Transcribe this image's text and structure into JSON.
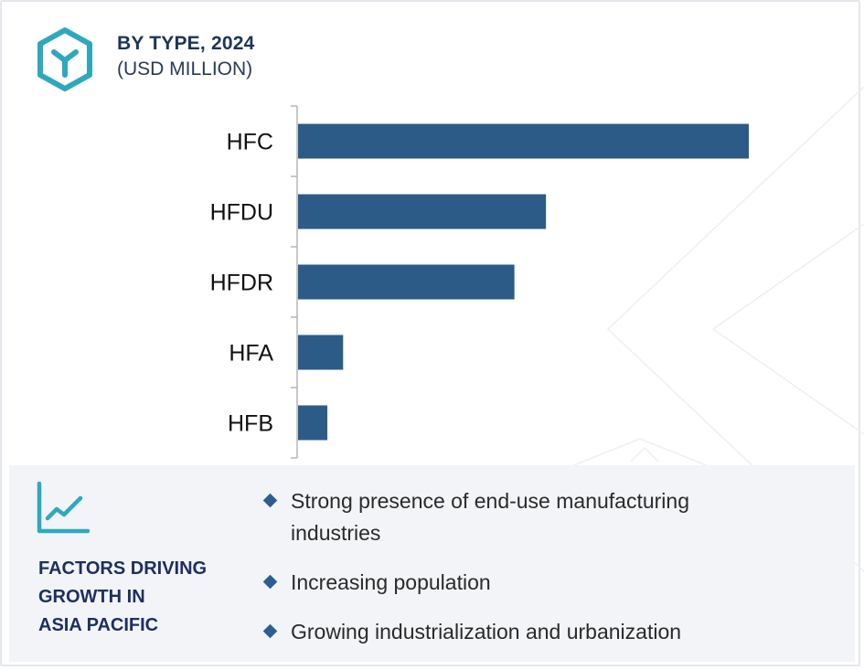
{
  "header": {
    "title": "BY TYPE, 2024",
    "subtitle": "(USD MILLION)",
    "logo_icon": "hexagon-y-icon"
  },
  "colors": {
    "bar": "#2d5b88",
    "title": "#1d3557",
    "accent": "#2fa8bd",
    "panel_bg": "#f2f4f8",
    "axis": "#b5b5b5"
  },
  "chart_data": {
    "type": "bar",
    "orientation": "horizontal",
    "categories": [
      "HFC",
      "HFDU",
      "HFDR",
      "HFA",
      "HFB"
    ],
    "values": [
      100,
      55,
      48,
      10,
      6.5
    ],
    "title": "BY TYPE, 2024",
    "subtitle": "(USD MILLION)",
    "xlabel": "",
    "ylabel": "",
    "xlim": [
      0,
      100
    ],
    "grid": false,
    "legend": "none"
  },
  "factors": {
    "icon": "trend-line-chart-icon",
    "title_lines": [
      "FACTORS DRIVING",
      "GROWTH IN",
      "ASIA PACIFIC"
    ],
    "bullet_icon": "diamond-bullet-icon",
    "items": [
      "Strong presence of end-use manufacturing industries",
      "Increasing population",
      "Growing industrialization and urbanization"
    ]
  }
}
